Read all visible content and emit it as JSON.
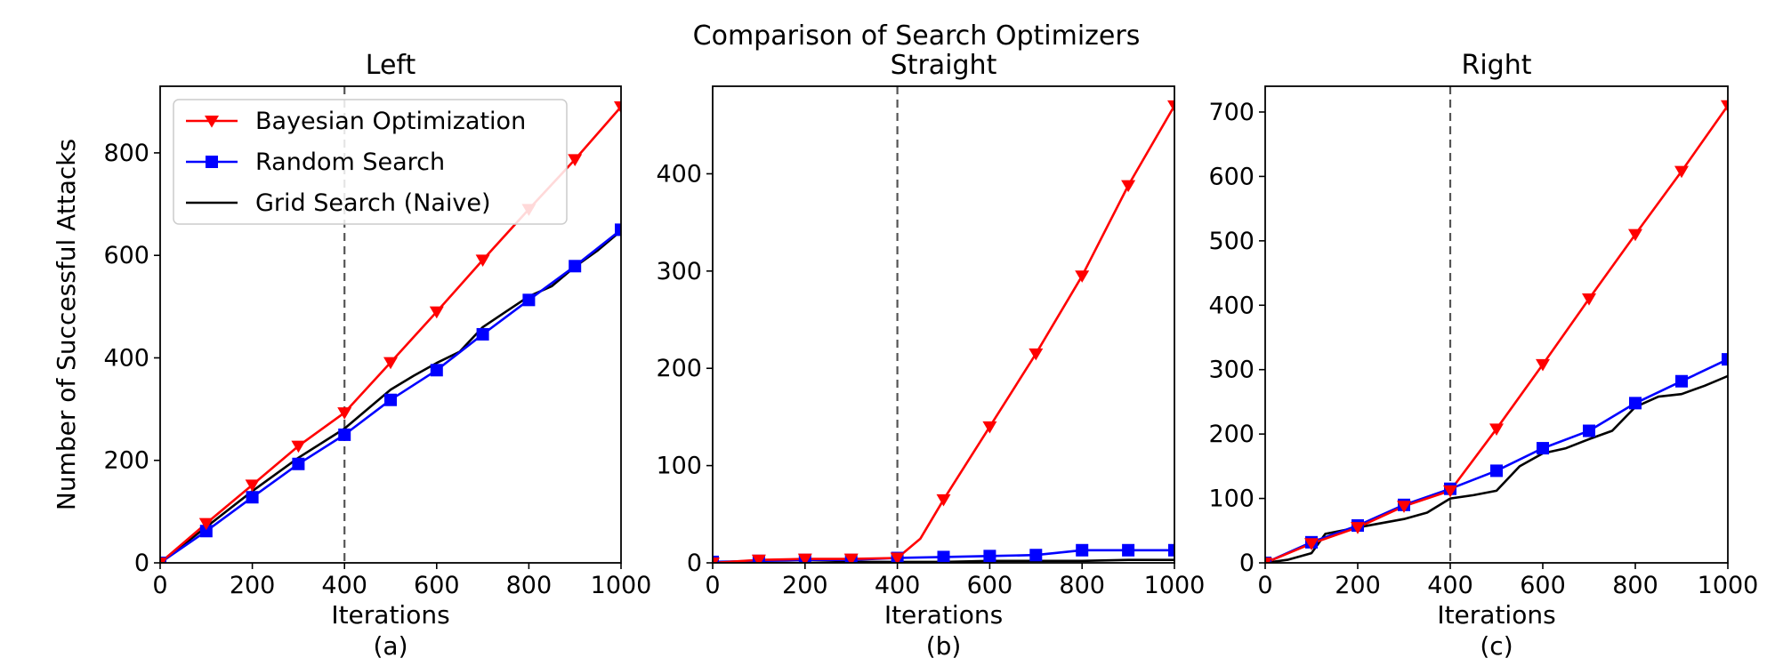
{
  "figure_title": "Comparison of Search Optimizers",
  "legend": {
    "placement": "upper-left of panel (a)",
    "entries": [
      {
        "label": "Bayesian Optimization",
        "color": "#ff0000",
        "marker": "triangle-down"
      },
      {
        "label": "Random Search",
        "color": "#0000ff",
        "marker": "square"
      },
      {
        "label": "Grid Search (Naive)",
        "color": "#000000",
        "marker": "none"
      }
    ]
  },
  "chart_data": [
    {
      "type": "line",
      "title": "Left",
      "caption": "(a)",
      "xlabel": "Iterations",
      "ylabel": "Number of Successful Attacks",
      "xlim": [
        0,
        1000
      ],
      "ylim": [
        0,
        930
      ],
      "xticks": [
        0,
        200,
        400,
        600,
        800,
        1000
      ],
      "yticks": [
        0,
        200,
        400,
        600,
        800
      ],
      "grid": false,
      "vline_x": 400,
      "series": [
        {
          "name": "Bayesian Optimization",
          "color": "#ff0000",
          "marker": "triangle-down",
          "x": [
            0,
            100,
            200,
            300,
            400,
            500,
            600,
            700,
            800,
            900,
            1000
          ],
          "y": [
            0,
            77,
            152,
            228,
            293,
            391,
            490,
            591,
            690,
            787,
            890
          ]
        },
        {
          "name": "Random Search",
          "color": "#0000ff",
          "marker": "square",
          "x": [
            0,
            100,
            200,
            300,
            400,
            500,
            600,
            700,
            800,
            900,
            1000
          ],
          "y": [
            0,
            62,
            128,
            193,
            250,
            318,
            376,
            446,
            513,
            579,
            650
          ]
        },
        {
          "name": "Grid Search (Naive)",
          "color": "#000000",
          "marker": "none",
          "x": [
            0,
            100,
            200,
            300,
            400,
            450,
            500,
            550,
            600,
            650,
            700,
            750,
            800,
            850,
            900,
            950,
            1000
          ],
          "y": [
            0,
            70,
            140,
            205,
            262,
            300,
            338,
            365,
            390,
            412,
            460,
            490,
            520,
            540,
            578,
            610,
            648
          ]
        }
      ]
    },
    {
      "type": "line",
      "title": "Straight",
      "caption": "(b)",
      "xlabel": "Iterations",
      "ylabel": "",
      "xlim": [
        0,
        1000
      ],
      "ylim": [
        0,
        490
      ],
      "xticks": [
        0,
        200,
        400,
        600,
        800,
        1000
      ],
      "yticks": [
        0,
        100,
        200,
        300,
        400
      ],
      "grid": false,
      "vline_x": 400,
      "series": [
        {
          "name": "Bayesian Optimization",
          "color": "#ff0000",
          "marker": "triangle-down",
          "x": [
            0,
            100,
            200,
            300,
            400,
            450,
            500,
            600,
            700,
            800,
            900,
            1000
          ],
          "y": [
            0,
            3,
            4,
            4,
            5,
            25,
            65,
            140,
            215,
            295,
            388,
            470
          ]
        },
        {
          "name": "Random Search",
          "color": "#0000ff",
          "marker": "square",
          "x": [
            0,
            100,
            200,
            300,
            400,
            500,
            600,
            700,
            800,
            900,
            1000
          ],
          "y": [
            1,
            2,
            3,
            3,
            5,
            6,
            7,
            8,
            13,
            13,
            13
          ]
        },
        {
          "name": "Grid Search (Naive)",
          "color": "#000000",
          "marker": "none",
          "x": [
            0,
            100,
            200,
            300,
            400,
            500,
            600,
            700,
            800,
            900,
            1000
          ],
          "y": [
            0,
            0,
            0,
            1,
            1,
            1,
            2,
            2,
            2,
            3,
            3
          ]
        }
      ]
    },
    {
      "type": "line",
      "title": "Right",
      "caption": "(c)",
      "xlabel": "Iterations",
      "ylabel": "",
      "xlim": [
        0,
        1000
      ],
      "ylim": [
        0,
        740
      ],
      "xticks": [
        0,
        200,
        400,
        600,
        800,
        1000
      ],
      "yticks": [
        0,
        100,
        200,
        300,
        400,
        500,
        600,
        700
      ],
      "grid": false,
      "vline_x": 400,
      "series": [
        {
          "name": "Bayesian Optimization",
          "color": "#ff0000",
          "marker": "triangle-down",
          "x": [
            0,
            100,
            200,
            300,
            400,
            500,
            600,
            700,
            800,
            900,
            1000
          ],
          "y": [
            0,
            30,
            55,
            88,
            112,
            208,
            308,
            410,
            510,
            608,
            710
          ]
        },
        {
          "name": "Random Search",
          "color": "#0000ff",
          "marker": "square",
          "x": [
            0,
            100,
            200,
            300,
            400,
            500,
            600,
            700,
            800,
            900,
            1000
          ],
          "y": [
            0,
            32,
            58,
            90,
            115,
            143,
            178,
            205,
            248,
            282,
            316
          ]
        },
        {
          "name": "Grid Search (Naive)",
          "color": "#000000",
          "marker": "none",
          "x": [
            0,
            50,
            100,
            130,
            200,
            300,
            350,
            400,
            450,
            500,
            550,
            600,
            650,
            700,
            750,
            800,
            850,
            900,
            950,
            1000
          ],
          "y": [
            0,
            5,
            15,
            45,
            55,
            68,
            78,
            100,
            105,
            112,
            150,
            170,
            178,
            192,
            205,
            242,
            258,
            262,
            275,
            290
          ]
        }
      ]
    }
  ]
}
